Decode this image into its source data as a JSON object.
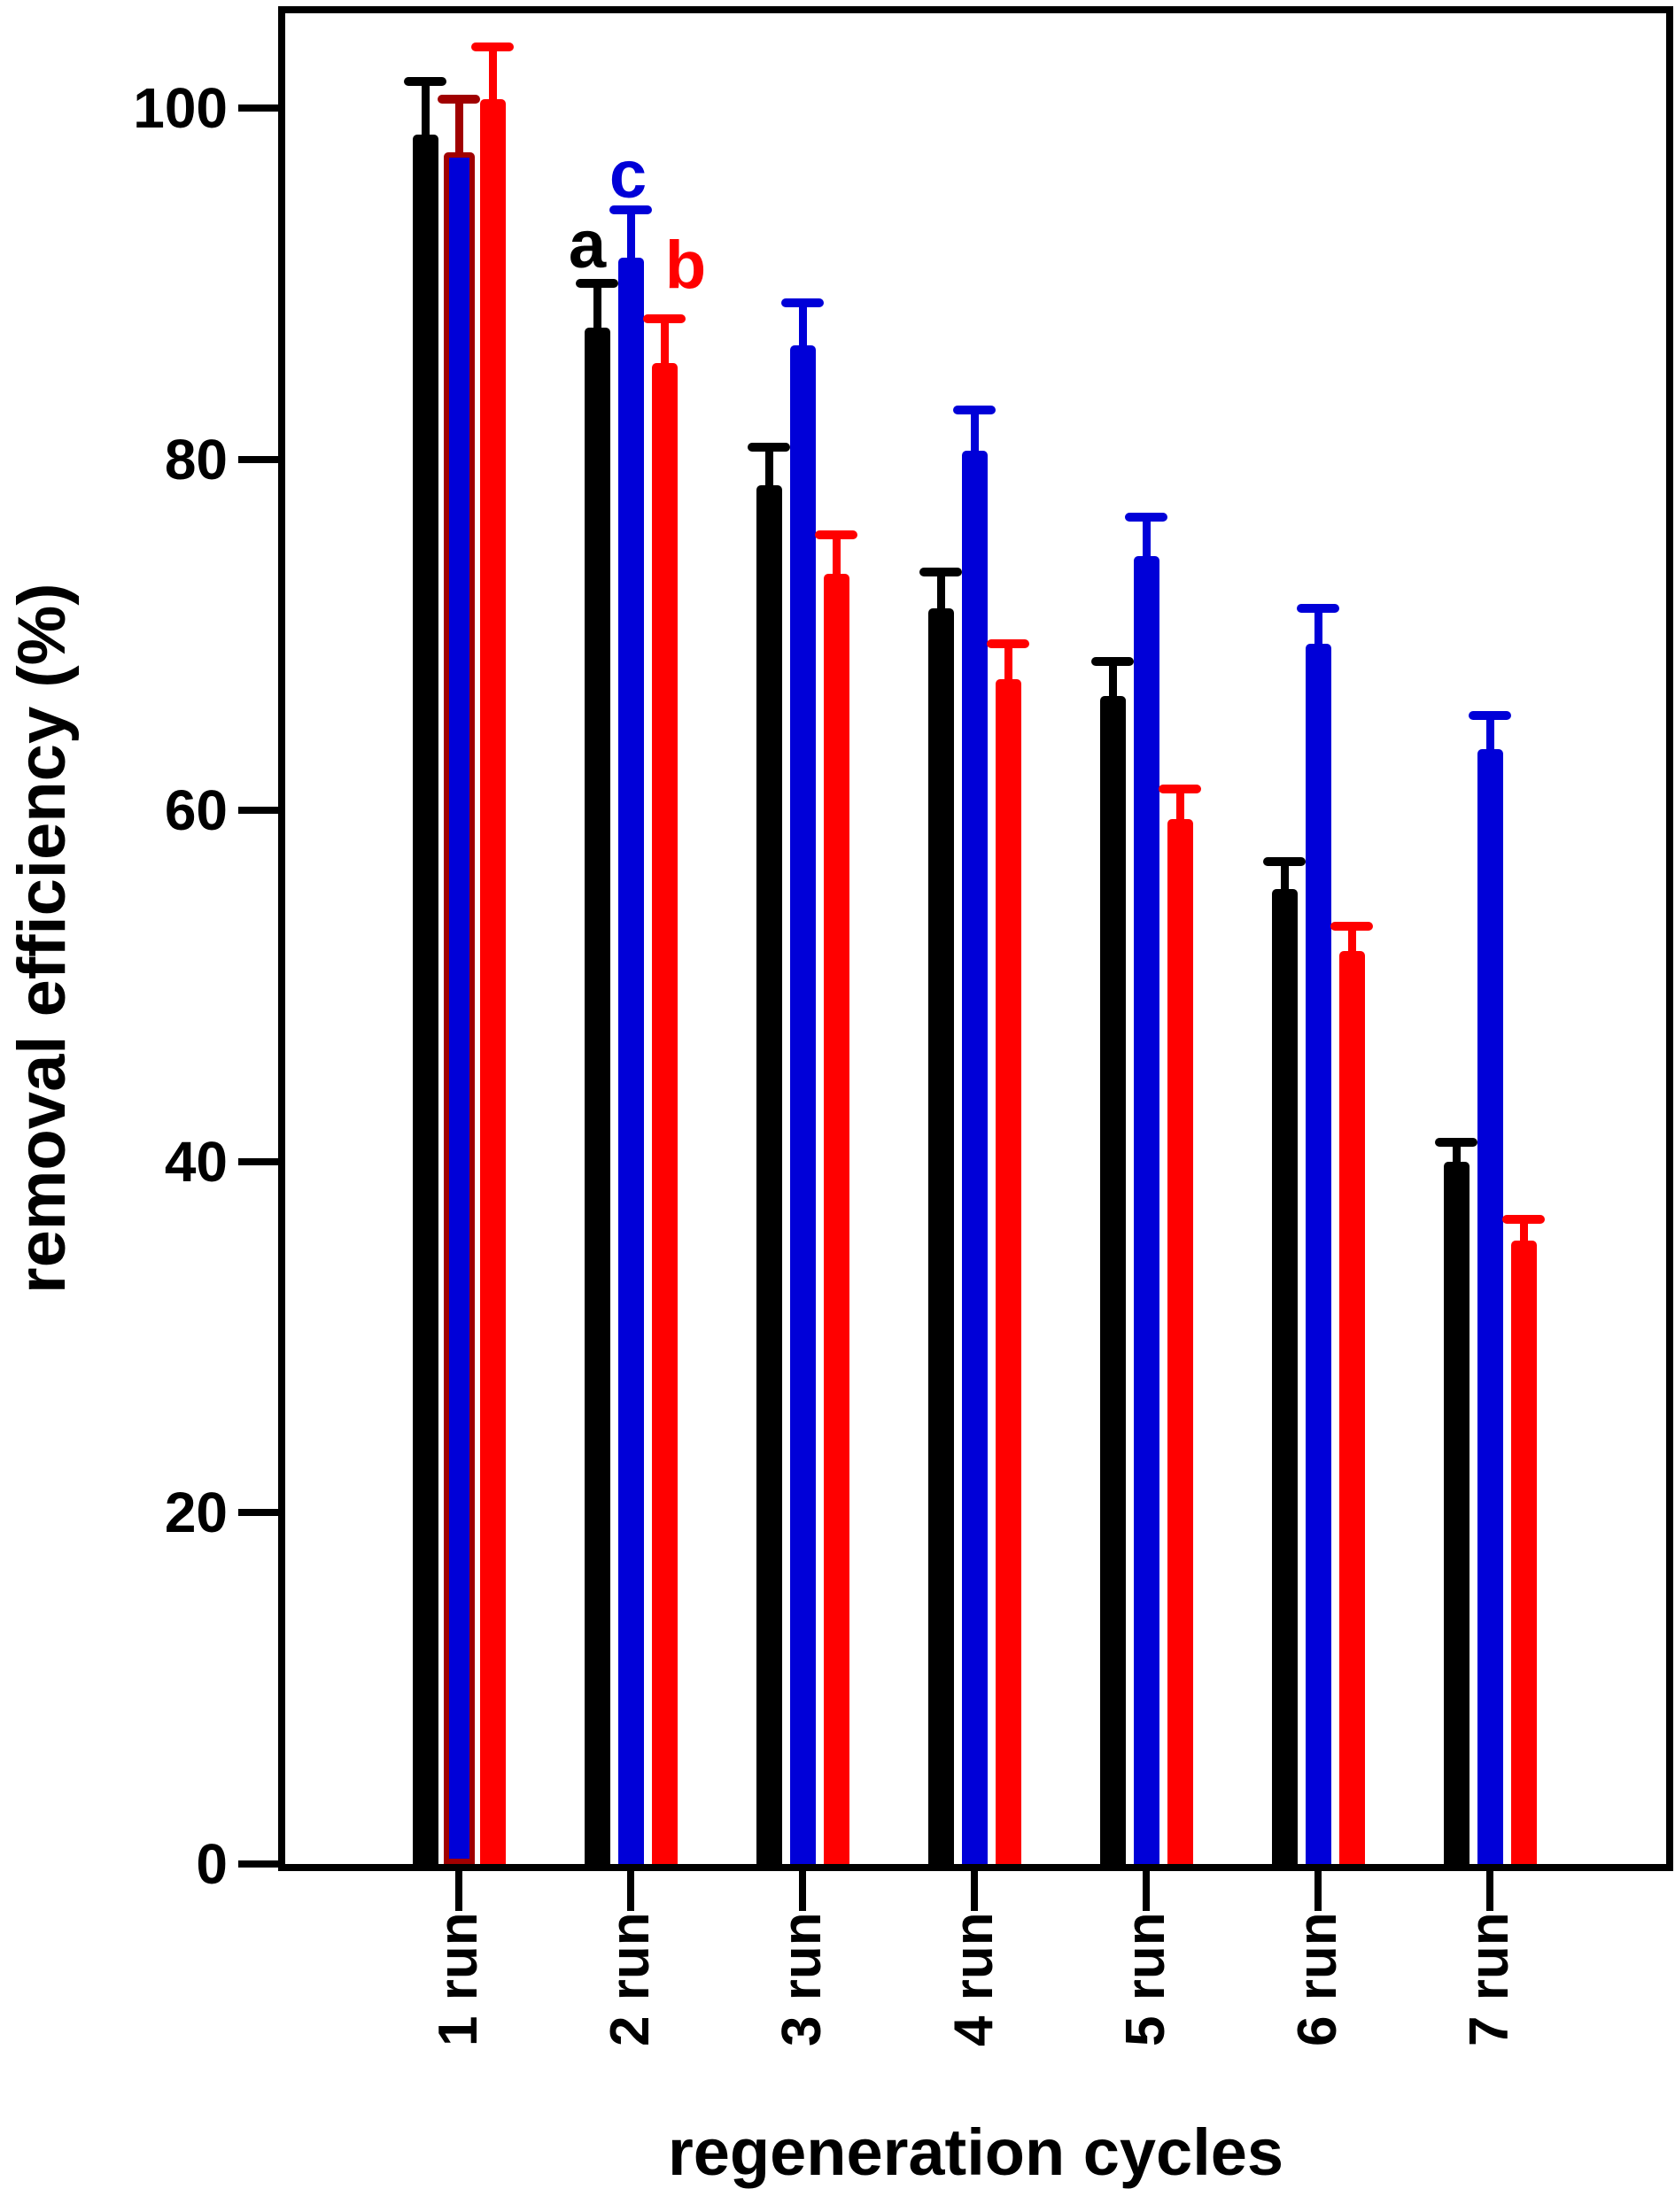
{
  "chart_data": {
    "type": "bar",
    "title": "",
    "xlabel": "regeneration cycles",
    "ylabel": "removal efficiency (%)",
    "categories": [
      "1 run",
      "2 run",
      "3 run",
      "4 run",
      "5 run",
      "6 run",
      "7 run"
    ],
    "y_ticks": [
      0,
      20,
      40,
      60,
      80,
      100
    ],
    "ylim": [
      0,
      105.4
    ],
    "grid": false,
    "legend_position": "none",
    "axis_color": "#000000",
    "background_color": "#ffffff",
    "series": [
      {
        "name": "a",
        "color": "#000000",
        "values": [
          98.5,
          87.5,
          78.5,
          71.5,
          66.5,
          55.5,
          40.0
        ],
        "errors": [
          3.0,
          2.5,
          2.2,
          2.1,
          2.0,
          1.6,
          1.1
        ]
      },
      {
        "name": "c",
        "color": "#0000D8",
        "values": [
          97.5,
          91.5,
          86.5,
          80.5,
          74.5,
          69.5,
          63.5
        ],
        "errors": [
          3.0,
          2.7,
          2.4,
          2.3,
          2.2,
          2.0,
          1.9
        ],
        "overrides": [
          {
            "group": 0,
            "outline": "#A00000",
            "error_color": "#A00000"
          }
        ]
      },
      {
        "name": "b",
        "color": "#FF0000",
        "values": [
          100.5,
          85.5,
          73.5,
          67.5,
          59.5,
          52.0,
          35.5
        ],
        "errors": [
          3.0,
          2.5,
          2.2,
          2.0,
          1.7,
          1.4,
          1.2
        ]
      }
    ],
    "annotations": [
      {
        "text": "a",
        "color": "#000000",
        "x": 663,
        "y": 277
      },
      {
        "text": "c",
        "color": "#0000D8",
        "x": 709,
        "y": 198
      },
      {
        "text": "b",
        "color": "#FF0000",
        "x": 774,
        "y": 300
      }
    ]
  }
}
